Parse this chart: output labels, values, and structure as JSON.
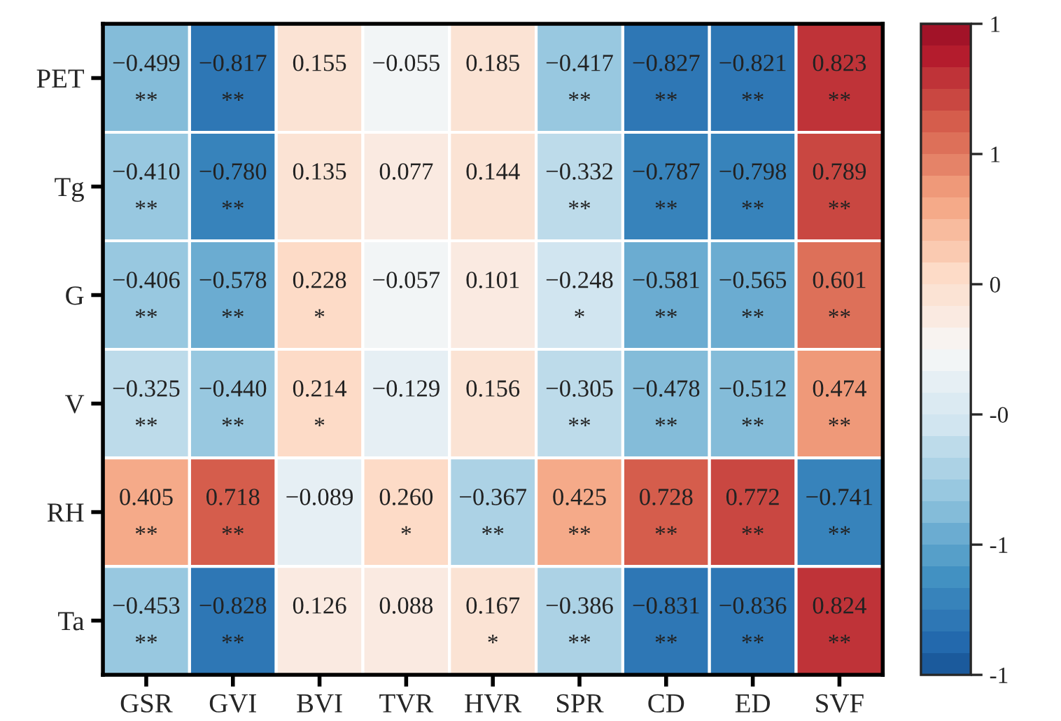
{
  "chart_data": {
    "type": "heatmap",
    "categories": [
      "GSR",
      "GVI",
      "BVI",
      "TVR",
      "HVR",
      "SPR",
      "CD",
      "ED",
      "SVF"
    ],
    "y_categories": [
      "PET",
      "Tg",
      "G",
      "V",
      "RH",
      "Ta"
    ],
    "cells": [
      [
        -0.499,
        -0.817,
        0.155,
        -0.055,
        0.185,
        -0.417,
        -0.827,
        -0.821,
        0.823
      ],
      [
        -0.41,
        -0.78,
        0.135,
        0.077,
        0.144,
        -0.332,
        -0.787,
        -0.798,
        0.789
      ],
      [
        -0.406,
        -0.578,
        0.228,
        -0.057,
        0.101,
        -0.248,
        -0.581,
        -0.565,
        0.601
      ],
      [
        -0.325,
        -0.44,
        0.214,
        -0.129,
        0.156,
        -0.305,
        -0.478,
        -0.512,
        0.474
      ],
      [
        0.405,
        0.718,
        -0.089,
        0.26,
        -0.367,
        0.425,
        0.728,
        0.772,
        -0.741
      ],
      [
        -0.453,
        -0.828,
        0.126,
        0.088,
        0.167,
        -0.386,
        -0.831,
        -0.836,
        0.824
      ]
    ],
    "cell_labels": [
      [
        "−0.499\n**",
        "−0.817\n**",
        "0.155",
        "−0.055",
        "0.185",
        "−0.417\n**",
        "−0.827\n**",
        "−0.821\n**",
        "0.823\n**"
      ],
      [
        "−0.410\n**",
        "−0.780\n**",
        "0.135",
        "0.077",
        "0.144",
        "−0.332\n**",
        "−0.787\n**",
        "−0.798\n**",
        "0.789\n**"
      ],
      [
        "−0.406\n**",
        "−0.578\n**",
        "0.228\n*",
        "−0.057",
        "0.101",
        "−0.248\n*",
        "−0.581\n**",
        "−0.565\n**",
        "0.601\n**"
      ],
      [
        "−0.325\n**",
        "−0.440\n**",
        "0.214\n*",
        "−0.129",
        "0.156",
        "−0.305\n**",
        "−0.478\n**",
        "−0.512\n**",
        "0.474\n**"
      ],
      [
        "0.405\n**",
        "0.718\n**",
        "−0.089",
        "0.260\n*",
        "−0.367\n**",
        "0.425\n**",
        "0.728\n**",
        "0.772\n**",
        "−0.741\n**"
      ],
      [
        "−0.453\n**",
        "−0.828\n**",
        "0.126",
        "0.088",
        "0.167\n*",
        "−0.386\n**",
        "−0.831\n**",
        "−0.836\n**",
        "0.824\n**"
      ]
    ],
    "clim": [
      -1,
      1
    ],
    "cticks": [
      {
        "value": -1,
        "label": "-1"
      },
      {
        "value": -0.6,
        "label": "-1"
      },
      {
        "value": -0.2,
        "label": "-0"
      },
      {
        "value": 0.2,
        "label": "0"
      },
      {
        "value": 0.6,
        "label": "1"
      },
      {
        "value": 1,
        "label": "1"
      }
    ]
  }
}
